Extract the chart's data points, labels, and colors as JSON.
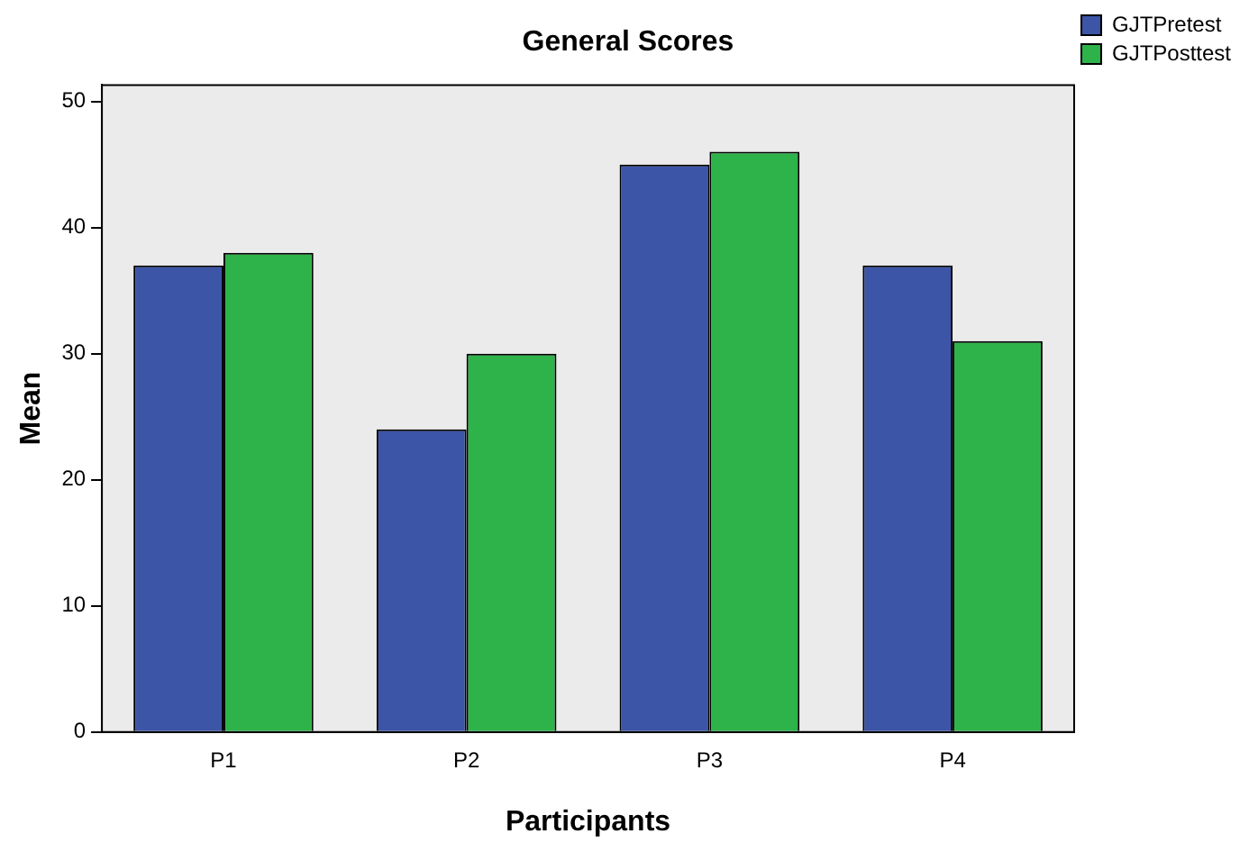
{
  "chart_data": {
    "type": "bar",
    "title": "General Scores",
    "xlabel": "Participants",
    "ylabel": "Mean",
    "categories": [
      "P1",
      "P2",
      "P3",
      "P4"
    ],
    "series": [
      {
        "name": "GJTPretest",
        "color": "#3c55a6",
        "values": [
          37,
          24,
          45,
          37
        ]
      },
      {
        "name": "GJTPosttest",
        "color": "#2db34a",
        "values": [
          38,
          30,
          46,
          31
        ]
      }
    ],
    "ylim": [
      0,
      51.3
    ],
    "yticks": [
      0,
      10,
      20,
      30,
      40,
      50
    ],
    "grid": false,
    "legend": "top right"
  }
}
